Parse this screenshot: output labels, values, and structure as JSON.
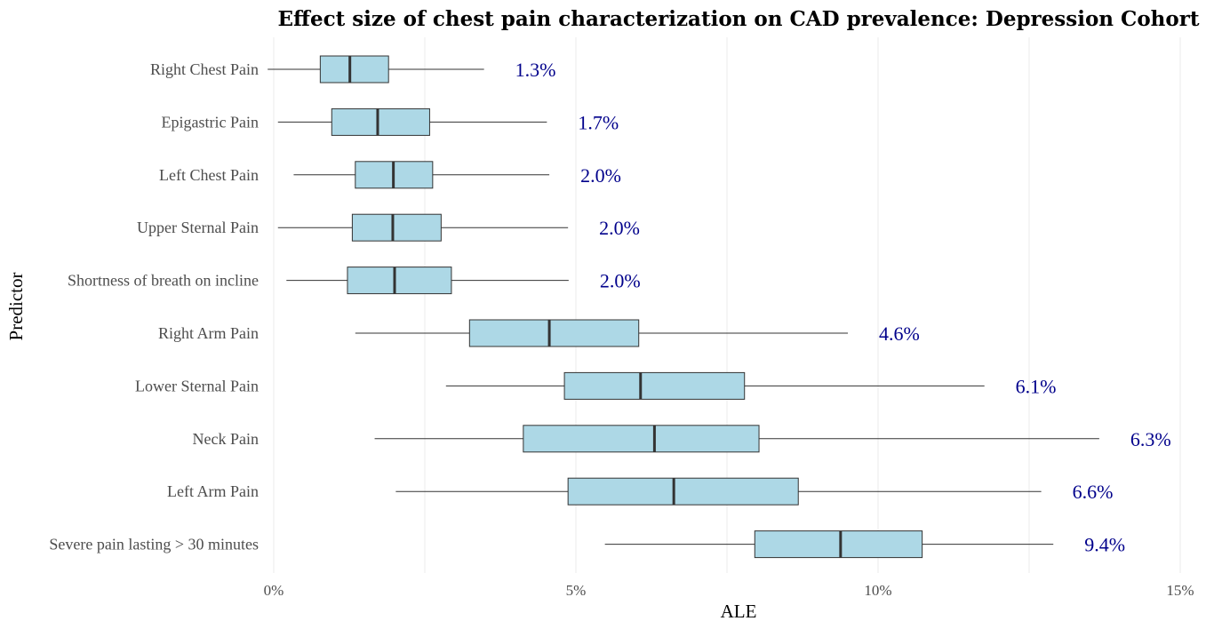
{
  "chart_data": {
    "type": "boxplot",
    "orientation": "horizontal",
    "title": "Effect size of chest pain characterization on CAD prevalence: Depression Cohort",
    "xlabel": "ALE",
    "ylabel": "Predictor",
    "xlim": [
      -0.002,
      0.152
    ],
    "x_ticks": [
      0,
      0.05,
      0.1,
      0.15
    ],
    "x_tick_labels": [
      "0%",
      "5%",
      "10%",
      "15%"
    ],
    "grid": "vertical major and minor",
    "box_color": "#add8e6",
    "label_color": "#00008b",
    "categories": [
      "Right Chest Pain",
      "Epigastric Pain",
      "Left Chest Pain",
      "Upper Sternal Pain",
      "Shortness of breath on incline",
      "Right Arm Pain",
      "Lower Sternal Pain",
      "Neck Pain",
      "Left Arm Pain",
      "Severe pain lasting > 30 minutes"
    ],
    "boxes": [
      {
        "min": -0.001,
        "q1": 0.0077,
        "median": 0.0126,
        "q3": 0.019,
        "max": 0.0348,
        "label": "1.3%"
      },
      {
        "min": 0.0007,
        "q1": 0.0096,
        "median": 0.0172,
        "q3": 0.0258,
        "max": 0.0452,
        "label": "1.7%"
      },
      {
        "min": 0.0033,
        "q1": 0.0135,
        "median": 0.0198,
        "q3": 0.0263,
        "max": 0.0456,
        "label": "2.0%"
      },
      {
        "min": 0.0007,
        "q1": 0.013,
        "median": 0.0197,
        "q3": 0.0277,
        "max": 0.0487,
        "label": "2.0%"
      },
      {
        "min": 0.0021,
        "q1": 0.0122,
        "median": 0.02,
        "q3": 0.0294,
        "max": 0.0488,
        "label": "2.0%"
      },
      {
        "min": 0.0135,
        "q1": 0.0324,
        "median": 0.0456,
        "q3": 0.0604,
        "max": 0.095,
        "label": "4.6%"
      },
      {
        "min": 0.0285,
        "q1": 0.0481,
        "median": 0.0607,
        "q3": 0.0779,
        "max": 0.1176,
        "label": "6.1%"
      },
      {
        "min": 0.0167,
        "q1": 0.0413,
        "median": 0.063,
        "q3": 0.0803,
        "max": 0.1366,
        "label": "6.3%"
      },
      {
        "min": 0.0202,
        "q1": 0.0487,
        "median": 0.0662,
        "q3": 0.0868,
        "max": 0.127,
        "label": "6.6%"
      },
      {
        "min": 0.0548,
        "q1": 0.0796,
        "median": 0.0938,
        "q3": 0.1073,
        "max": 0.129,
        "label": "9.4%"
      }
    ]
  }
}
